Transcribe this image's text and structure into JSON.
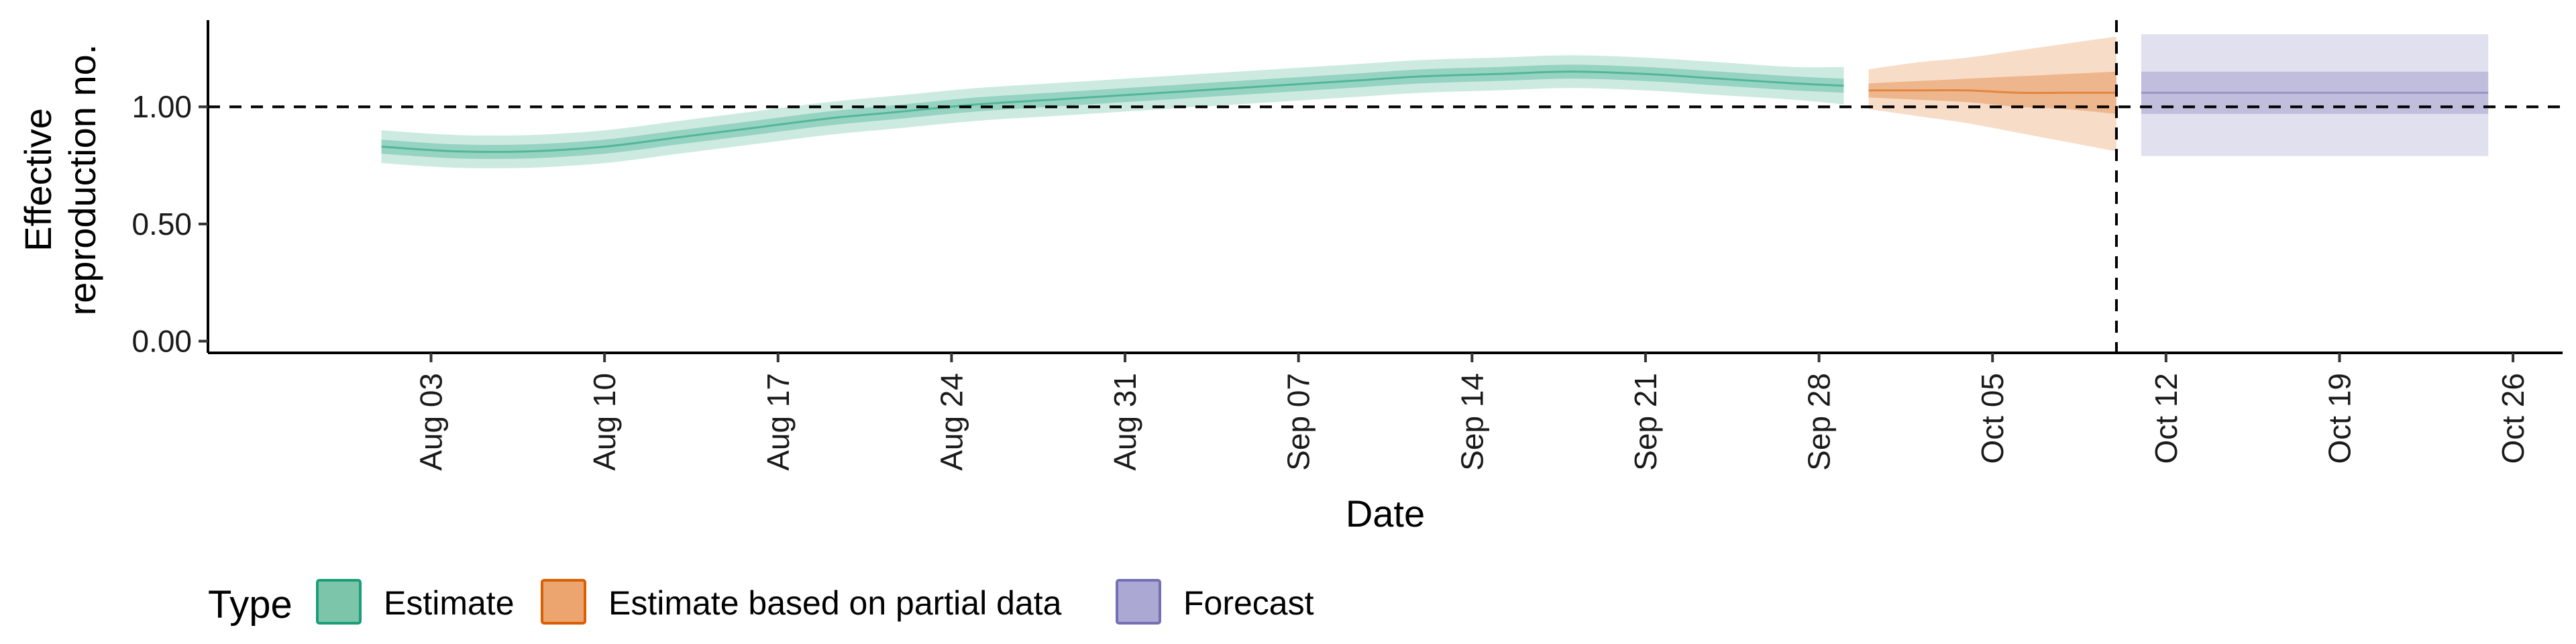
{
  "chart_data": {
    "type": "area",
    "title": "",
    "xlabel": "Date",
    "ylabel_lines": [
      "Effective",
      "reproduction no."
    ],
    "x_ticks": [
      {
        "date": "2020-08-03",
        "label": "Aug 03"
      },
      {
        "date": "2020-08-10",
        "label": "Aug 10"
      },
      {
        "date": "2020-08-17",
        "label": "Aug 17"
      },
      {
        "date": "2020-08-24",
        "label": "Aug 24"
      },
      {
        "date": "2020-08-31",
        "label": "Aug 31"
      },
      {
        "date": "2020-09-07",
        "label": "Sep 07"
      },
      {
        "date": "2020-09-14",
        "label": "Sep 14"
      },
      {
        "date": "2020-09-21",
        "label": "Sep 21"
      },
      {
        "date": "2020-09-28",
        "label": "Sep 28"
      },
      {
        "date": "2020-10-05",
        "label": "Oct 05"
      },
      {
        "date": "2020-10-12",
        "label": "Oct 12"
      },
      {
        "date": "2020-10-19",
        "label": "Oct 19"
      },
      {
        "date": "2020-10-26",
        "label": "Oct 26"
      }
    ],
    "y_ticks": [
      {
        "value": 0.0,
        "label": "0.00"
      },
      {
        "value": 0.5,
        "label": "0.50"
      },
      {
        "value": 1.0,
        "label": "1.00"
      }
    ],
    "xlim": [
      "2020-07-25",
      "2020-10-28"
    ],
    "ylim": [
      -0.05,
      1.37
    ],
    "reference_hline": 1.0,
    "reference_vline": "2020-10-10",
    "grid": false,
    "legend": {
      "title": "Type",
      "placement": "bottom-left",
      "entries": [
        {
          "label": "Estimate",
          "fill": "#7cc5aa",
          "stroke": "#1b9e77"
        },
        {
          "label": "Estimate based on partial data",
          "fill": "#eca56e",
          "stroke": "#d95f02"
        },
        {
          "label": "Forecast",
          "fill": "#aba9d4",
          "stroke": "#7570b3"
        }
      ]
    },
    "series": [
      {
        "name": "Estimate",
        "color": "#1b9e77",
        "points": [
          {
            "x": "2020-08-01",
            "median": 0.83,
            "l50": 0.8,
            "u50": 0.86,
            "l90": 0.76,
            "u90": 0.9
          },
          {
            "x": "2020-08-04",
            "median": 0.81,
            "l50": 0.78,
            "u50": 0.84,
            "l90": 0.74,
            "u90": 0.88
          },
          {
            "x": "2020-08-07",
            "median": 0.81,
            "l50": 0.78,
            "u50": 0.84,
            "l90": 0.74,
            "u90": 0.88
          },
          {
            "x": "2020-08-10",
            "median": 0.83,
            "l50": 0.8,
            "u50": 0.86,
            "l90": 0.76,
            "u90": 0.9
          },
          {
            "x": "2020-08-13",
            "median": 0.87,
            "l50": 0.84,
            "u50": 0.9,
            "l90": 0.8,
            "u90": 0.94
          },
          {
            "x": "2020-08-16",
            "median": 0.91,
            "l50": 0.88,
            "u50": 0.94,
            "l90": 0.84,
            "u90": 0.98
          },
          {
            "x": "2020-08-19",
            "median": 0.95,
            "l50": 0.92,
            "u50": 0.98,
            "l90": 0.88,
            "u90": 1.02
          },
          {
            "x": "2020-08-22",
            "median": 0.98,
            "l50": 0.95,
            "u50": 1.01,
            "l90": 0.91,
            "u90": 1.05
          },
          {
            "x": "2020-08-25",
            "median": 1.01,
            "l50": 0.98,
            "u50": 1.04,
            "l90": 0.94,
            "u90": 1.08
          },
          {
            "x": "2020-08-28",
            "median": 1.03,
            "l50": 1.0,
            "u50": 1.06,
            "l90": 0.96,
            "u90": 1.1
          },
          {
            "x": "2020-08-31",
            "median": 1.05,
            "l50": 1.02,
            "u50": 1.08,
            "l90": 0.98,
            "u90": 1.12
          },
          {
            "x": "2020-09-03",
            "median": 1.07,
            "l50": 1.04,
            "u50": 1.1,
            "l90": 1.0,
            "u90": 1.14
          },
          {
            "x": "2020-09-06",
            "median": 1.09,
            "l50": 1.06,
            "u50": 1.12,
            "l90": 1.02,
            "u90": 1.16
          },
          {
            "x": "2020-09-09",
            "median": 1.11,
            "l50": 1.08,
            "u50": 1.14,
            "l90": 1.04,
            "u90": 1.18
          },
          {
            "x": "2020-09-12",
            "median": 1.13,
            "l50": 1.1,
            "u50": 1.16,
            "l90": 1.06,
            "u90": 1.2
          },
          {
            "x": "2020-09-15",
            "median": 1.14,
            "l50": 1.11,
            "u50": 1.17,
            "l90": 1.07,
            "u90": 1.21
          },
          {
            "x": "2020-09-18",
            "median": 1.15,
            "l50": 1.12,
            "u50": 1.18,
            "l90": 1.08,
            "u90": 1.22
          },
          {
            "x": "2020-09-21",
            "median": 1.14,
            "l50": 1.11,
            "u50": 1.17,
            "l90": 1.07,
            "u90": 1.21
          },
          {
            "x": "2020-09-24",
            "median": 1.12,
            "l50": 1.09,
            "u50": 1.15,
            "l90": 1.05,
            "u90": 1.19
          },
          {
            "x": "2020-09-27",
            "median": 1.1,
            "l50": 1.07,
            "u50": 1.13,
            "l90": 1.03,
            "u90": 1.17
          },
          {
            "x": "2020-09-29",
            "median": 1.09,
            "l50": 1.06,
            "u50": 1.12,
            "l90": 1.01,
            "u90": 1.17
          }
        ]
      },
      {
        "name": "Estimate based on partial data",
        "color": "#d95f02",
        "points": [
          {
            "x": "2020-09-30",
            "median": 1.07,
            "l50": 1.04,
            "u50": 1.1,
            "l90": 0.99,
            "u90": 1.16
          },
          {
            "x": "2020-10-02",
            "median": 1.07,
            "l50": 1.03,
            "u50": 1.11,
            "l90": 0.96,
            "u90": 1.19
          },
          {
            "x": "2020-10-04",
            "median": 1.07,
            "l50": 1.02,
            "u50": 1.12,
            "l90": 0.93,
            "u90": 1.21
          },
          {
            "x": "2020-10-06",
            "median": 1.06,
            "l50": 1.0,
            "u50": 1.13,
            "l90": 0.89,
            "u90": 1.24
          },
          {
            "x": "2020-10-08",
            "median": 1.06,
            "l50": 0.99,
            "u50": 1.14,
            "l90": 0.85,
            "u90": 1.27
          },
          {
            "x": "2020-10-10",
            "median": 1.06,
            "l50": 0.97,
            "u50": 1.15,
            "l90": 0.81,
            "u90": 1.3
          }
        ]
      },
      {
        "name": "Forecast",
        "color": "#7570b3",
        "points": [
          {
            "x": "2020-10-11",
            "median": 1.06,
            "l50": 0.97,
            "u50": 1.15,
            "l90": 0.79,
            "u90": 1.31
          },
          {
            "x": "2020-10-25",
            "median": 1.06,
            "l50": 0.97,
            "u50": 1.15,
            "l90": 0.79,
            "u90": 1.31
          }
        ]
      }
    ]
  }
}
